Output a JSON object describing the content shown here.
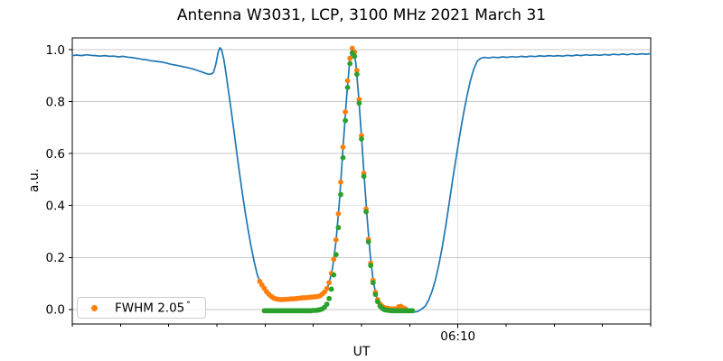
{
  "figure": {
    "title": "Antenna W3031, LCP, 3100 MHz 2021 March 31",
    "xlabel": "UT",
    "ylabel": "a.u.",
    "legend": {
      "label": "FWHM 2.05",
      "degree": "°",
      "marker_color": "#ff7f0e"
    }
  },
  "chart_data": {
    "type": "line+scatter",
    "title": "Antenna W3031, LCP, 3100 MHz 2021 March 31",
    "xlabel": "UT",
    "ylabel": "a.u.",
    "grid": true,
    "legend_position": "lower left",
    "legend_entries": [
      "FWHM 2.05 °"
    ],
    "x_axis": {
      "unit": "hours UT",
      "min": 5.5,
      "max": 6.5,
      "tick_interval_minutes": 5,
      "labeled_ticks": [
        {
          "value": 6.1667,
          "label": "06:10"
        }
      ]
    },
    "y_axis": {
      "min": -0.056,
      "max": 1.045,
      "ticks": [
        0.0,
        0.2,
        0.4,
        0.6,
        0.8,
        1.0
      ],
      "tick_labels": [
        "0.0",
        "0.2",
        "0.4",
        "0.6",
        "0.8",
        "1.0"
      ]
    },
    "colors": {
      "scan_line": "#1f77b4",
      "data_points": "#ff7f0e",
      "fit_points": "#2ca02c",
      "grid": "#c8c8c8"
    },
    "series": [
      {
        "name": "scan-line",
        "type": "line",
        "color": "#1f77b4",
        "points": [
          [
            5.5,
            0.977
          ],
          [
            5.508,
            0.979
          ],
          [
            5.516,
            0.977
          ],
          [
            5.524,
            0.98
          ],
          [
            5.532,
            0.978
          ],
          [
            5.54,
            0.977
          ],
          [
            5.548,
            0.975
          ],
          [
            5.556,
            0.977
          ],
          [
            5.564,
            0.974
          ],
          [
            5.572,
            0.975
          ],
          [
            5.58,
            0.972
          ],
          [
            5.588,
            0.974
          ],
          [
            5.596,
            0.971
          ],
          [
            5.604,
            0.969
          ],
          [
            5.612,
            0.966
          ],
          [
            5.62,
            0.963
          ],
          [
            5.628,
            0.961
          ],
          [
            5.636,
            0.957
          ],
          [
            5.644,
            0.955
          ],
          [
            5.652,
            0.953
          ],
          [
            5.66,
            0.95
          ],
          [
            5.668,
            0.945
          ],
          [
            5.676,
            0.941
          ],
          [
            5.684,
            0.938
          ],
          [
            5.692,
            0.934
          ],
          [
            5.7,
            0.93
          ],
          [
            5.708,
            0.926
          ],
          [
            5.716,
            0.92
          ],
          [
            5.724,
            0.914
          ],
          [
            5.73,
            0.909
          ],
          [
            5.736,
            0.905
          ],
          [
            5.74,
            0.906
          ],
          [
            5.744,
            0.912
          ],
          [
            5.748,
            0.942
          ],
          [
            5.752,
            0.988
          ],
          [
            5.755,
            1.007
          ],
          [
            5.758,
            1.001
          ],
          [
            5.762,
            0.962
          ],
          [
            5.766,
            0.905
          ],
          [
            5.77,
            0.84
          ],
          [
            5.775,
            0.762
          ],
          [
            5.78,
            0.678
          ],
          [
            5.785,
            0.592
          ],
          [
            5.79,
            0.51
          ],
          [
            5.795,
            0.432
          ],
          [
            5.8,
            0.36
          ],
          [
            5.805,
            0.293
          ],
          [
            5.81,
            0.232
          ],
          [
            5.815,
            0.178
          ],
          [
            5.82,
            0.132
          ],
          [
            5.825,
            0.104
          ],
          [
            5.83,
            0.082
          ],
          [
            5.835,
            0.066
          ],
          [
            5.84,
            0.055
          ],
          [
            5.848,
            0.043
          ],
          [
            5.856,
            0.039
          ],
          [
            5.864,
            0.038
          ],
          [
            5.88,
            0.04
          ],
          [
            5.9,
            0.044
          ],
          [
            5.916,
            0.048
          ],
          [
            5.928,
            0.051
          ],
          [
            5.936,
            0.062
          ],
          [
            5.944,
            0.1
          ],
          [
            5.95,
            0.16
          ],
          [
            5.956,
            0.262
          ],
          [
            5.962,
            0.42
          ],
          [
            5.968,
            0.618
          ],
          [
            5.974,
            0.812
          ],
          [
            5.979,
            0.942
          ],
          [
            5.983,
            0.99
          ],
          [
            5.986,
            0.995
          ],
          [
            5.99,
            0.952
          ],
          [
            5.995,
            0.822
          ],
          [
            6.0,
            0.665
          ],
          [
            6.005,
            0.5
          ],
          [
            6.01,
            0.345
          ],
          [
            6.015,
            0.212
          ],
          [
            6.02,
            0.115
          ],
          [
            6.025,
            0.055
          ],
          [
            6.03,
            0.024
          ],
          [
            6.036,
            0.008
          ],
          [
            6.044,
            0.0
          ],
          [
            6.052,
            -0.004
          ],
          [
            6.06,
            -0.006
          ],
          [
            6.068,
            -0.007
          ],
          [
            6.076,
            -0.008
          ],
          [
            6.084,
            -0.009
          ],
          [
            6.092,
            -0.01
          ],
          [
            6.098,
            -0.007
          ],
          [
            6.104,
            0.002
          ],
          [
            6.11,
            0.012
          ],
          [
            6.116,
            0.035
          ],
          [
            6.122,
            0.07
          ],
          [
            6.128,
            0.115
          ],
          [
            6.134,
            0.175
          ],
          [
            6.14,
            0.245
          ],
          [
            6.146,
            0.325
          ],
          [
            6.152,
            0.415
          ],
          [
            6.158,
            0.505
          ],
          [
            6.164,
            0.59
          ],
          [
            6.17,
            0.672
          ],
          [
            6.176,
            0.748
          ],
          [
            6.182,
            0.818
          ],
          [
            6.188,
            0.878
          ],
          [
            6.194,
            0.925
          ],
          [
            6.2,
            0.955
          ],
          [
            6.206,
            0.966
          ],
          [
            6.212,
            0.97
          ],
          [
            6.22,
            0.968
          ],
          [
            6.228,
            0.971
          ],
          [
            6.236,
            0.969
          ],
          [
            6.244,
            0.972
          ],
          [
            6.252,
            0.97
          ],
          [
            6.26,
            0.973
          ],
          [
            6.268,
            0.971
          ],
          [
            6.276,
            0.974
          ],
          [
            6.284,
            0.972
          ],
          [
            6.292,
            0.975
          ],
          [
            6.3,
            0.973
          ],
          [
            6.308,
            0.976
          ],
          [
            6.316,
            0.974
          ],
          [
            6.324,
            0.977
          ],
          [
            6.332,
            0.975
          ],
          [
            6.34,
            0.977
          ],
          [
            6.348,
            0.975
          ],
          [
            6.356,
            0.978
          ],
          [
            6.364,
            0.976
          ],
          [
            6.372,
            0.979
          ],
          [
            6.38,
            0.977
          ],
          [
            6.388,
            0.98
          ],
          [
            6.396,
            0.978
          ],
          [
            6.404,
            0.98
          ],
          [
            6.412,
            0.978
          ],
          [
            6.42,
            0.981
          ],
          [
            6.428,
            0.979
          ],
          [
            6.436,
            0.982
          ],
          [
            6.444,
            0.98
          ],
          [
            6.452,
            0.983
          ],
          [
            6.46,
            0.98
          ],
          [
            6.468,
            0.984
          ],
          [
            6.476,
            0.981
          ],
          [
            6.484,
            0.984
          ],
          [
            6.492,
            0.982
          ],
          [
            6.5,
            0.985
          ]
        ]
      },
      {
        "name": "data-points-fwhm-2.05deg",
        "type": "scatter",
        "color": "#ff7f0e",
        "legend": "FWHM 2.05 °",
        "points": [
          [
            5.824,
            0.108
          ],
          [
            5.828,
            0.094
          ],
          [
            5.832,
            0.081
          ],
          [
            5.836,
            0.068
          ],
          [
            5.84,
            0.058
          ],
          [
            5.844,
            0.05
          ],
          [
            5.848,
            0.044
          ],
          [
            5.852,
            0.041
          ],
          [
            5.856,
            0.039
          ],
          [
            5.86,
            0.038
          ],
          [
            5.864,
            0.038
          ],
          [
            5.868,
            0.039
          ],
          [
            5.872,
            0.039
          ],
          [
            5.876,
            0.04
          ],
          [
            5.88,
            0.041
          ],
          [
            5.884,
            0.041
          ],
          [
            5.888,
            0.042
          ],
          [
            5.892,
            0.043
          ],
          [
            5.896,
            0.044
          ],
          [
            5.9,
            0.045
          ],
          [
            5.904,
            0.045
          ],
          [
            5.908,
            0.046
          ],
          [
            5.912,
            0.047
          ],
          [
            5.916,
            0.048
          ],
          [
            5.92,
            0.049
          ],
          [
            5.924,
            0.05
          ],
          [
            5.928,
            0.052
          ],
          [
            5.932,
            0.059
          ],
          [
            5.936,
            0.067
          ],
          [
            5.94,
            0.08
          ],
          [
            5.944,
            0.103
          ],
          [
            5.948,
            0.139
          ],
          [
            5.952,
            0.193
          ],
          [
            5.956,
            0.268
          ],
          [
            5.96,
            0.368
          ],
          [
            5.964,
            0.49
          ],
          [
            5.968,
            0.625
          ],
          [
            5.972,
            0.76
          ],
          [
            5.976,
            0.88
          ],
          [
            5.98,
            0.966
          ],
          [
            5.984,
            1.005
          ],
          [
            5.988,
            0.99
          ],
          [
            5.992,
            0.92
          ],
          [
            5.996,
            0.808
          ],
          [
            6.0,
            0.669
          ],
          [
            6.004,
            0.524
          ],
          [
            6.008,
            0.387
          ],
          [
            6.012,
            0.27
          ],
          [
            6.016,
            0.178
          ],
          [
            6.02,
            0.112
          ],
          [
            6.024,
            0.066
          ],
          [
            6.028,
            0.038
          ],
          [
            6.032,
            0.021
          ],
          [
            6.036,
            0.012
          ],
          [
            6.04,
            0.007
          ],
          [
            6.044,
            0.004
          ],
          [
            6.048,
            0.003
          ],
          [
            6.052,
            0.002
          ],
          [
            6.056,
            0.002
          ],
          [
            6.06,
            0.002
          ],
          [
            6.064,
            0.01
          ],
          [
            6.068,
            0.012
          ],
          [
            6.072,
            0.006
          ],
          [
            6.076,
            0.002
          ]
        ]
      },
      {
        "name": "gaussian-fit-points",
        "type": "scatter",
        "color": "#2ca02c",
        "points": [
          [
            5.832,
            -0.005
          ],
          [
            5.836,
            -0.005
          ],
          [
            5.84,
            -0.005
          ],
          [
            5.844,
            -0.005
          ],
          [
            5.848,
            -0.005
          ],
          [
            5.852,
            -0.005
          ],
          [
            5.856,
            -0.005
          ],
          [
            5.86,
            -0.005
          ],
          [
            5.864,
            -0.005
          ],
          [
            5.868,
            -0.005
          ],
          [
            5.872,
            -0.005
          ],
          [
            5.876,
            -0.005
          ],
          [
            5.88,
            -0.005
          ],
          [
            5.884,
            -0.005
          ],
          [
            5.888,
            -0.005
          ],
          [
            5.892,
            -0.005
          ],
          [
            5.896,
            -0.005
          ],
          [
            5.9,
            -0.005
          ],
          [
            5.904,
            -0.005
          ],
          [
            5.908,
            -0.005
          ],
          [
            5.912,
            -0.005
          ],
          [
            5.916,
            -0.004
          ],
          [
            5.92,
            -0.004
          ],
          [
            5.924,
            -0.003
          ],
          [
            5.928,
            -0.001
          ],
          [
            5.932,
            0.002
          ],
          [
            5.936,
            0.008
          ],
          [
            5.94,
            0.02
          ],
          [
            5.944,
            0.042
          ],
          [
            5.948,
            0.078
          ],
          [
            5.952,
            0.133
          ],
          [
            5.956,
            0.211
          ],
          [
            5.96,
            0.315
          ],
          [
            5.964,
            0.442
          ],
          [
            5.968,
            0.584
          ],
          [
            5.972,
            0.727
          ],
          [
            5.976,
            0.854
          ],
          [
            5.98,
            0.946
          ],
          [
            5.984,
            0.988
          ],
          [
            5.988,
            0.974
          ],
          [
            5.992,
            0.905
          ],
          [
            5.996,
            0.794
          ],
          [
            6.0,
            0.656
          ],
          [
            6.004,
            0.512
          ],
          [
            6.008,
            0.376
          ],
          [
            6.012,
            0.26
          ],
          [
            6.016,
            0.169
          ],
          [
            6.02,
            0.103
          ],
          [
            6.024,
            0.058
          ],
          [
            6.028,
            0.03
          ],
          [
            6.032,
            0.013
          ],
          [
            6.036,
            0.004
          ],
          [
            6.04,
            -0.001
          ],
          [
            6.044,
            -0.003
          ],
          [
            6.048,
            -0.004
          ],
          [
            6.052,
            -0.005
          ],
          [
            6.056,
            -0.005
          ],
          [
            6.06,
            -0.005
          ],
          [
            6.064,
            -0.005
          ],
          [
            6.068,
            -0.005
          ],
          [
            6.072,
            -0.005
          ],
          [
            6.076,
            -0.005
          ],
          [
            6.08,
            -0.005
          ],
          [
            6.084,
            -0.005
          ],
          [
            6.088,
            -0.005
          ]
        ]
      }
    ]
  }
}
